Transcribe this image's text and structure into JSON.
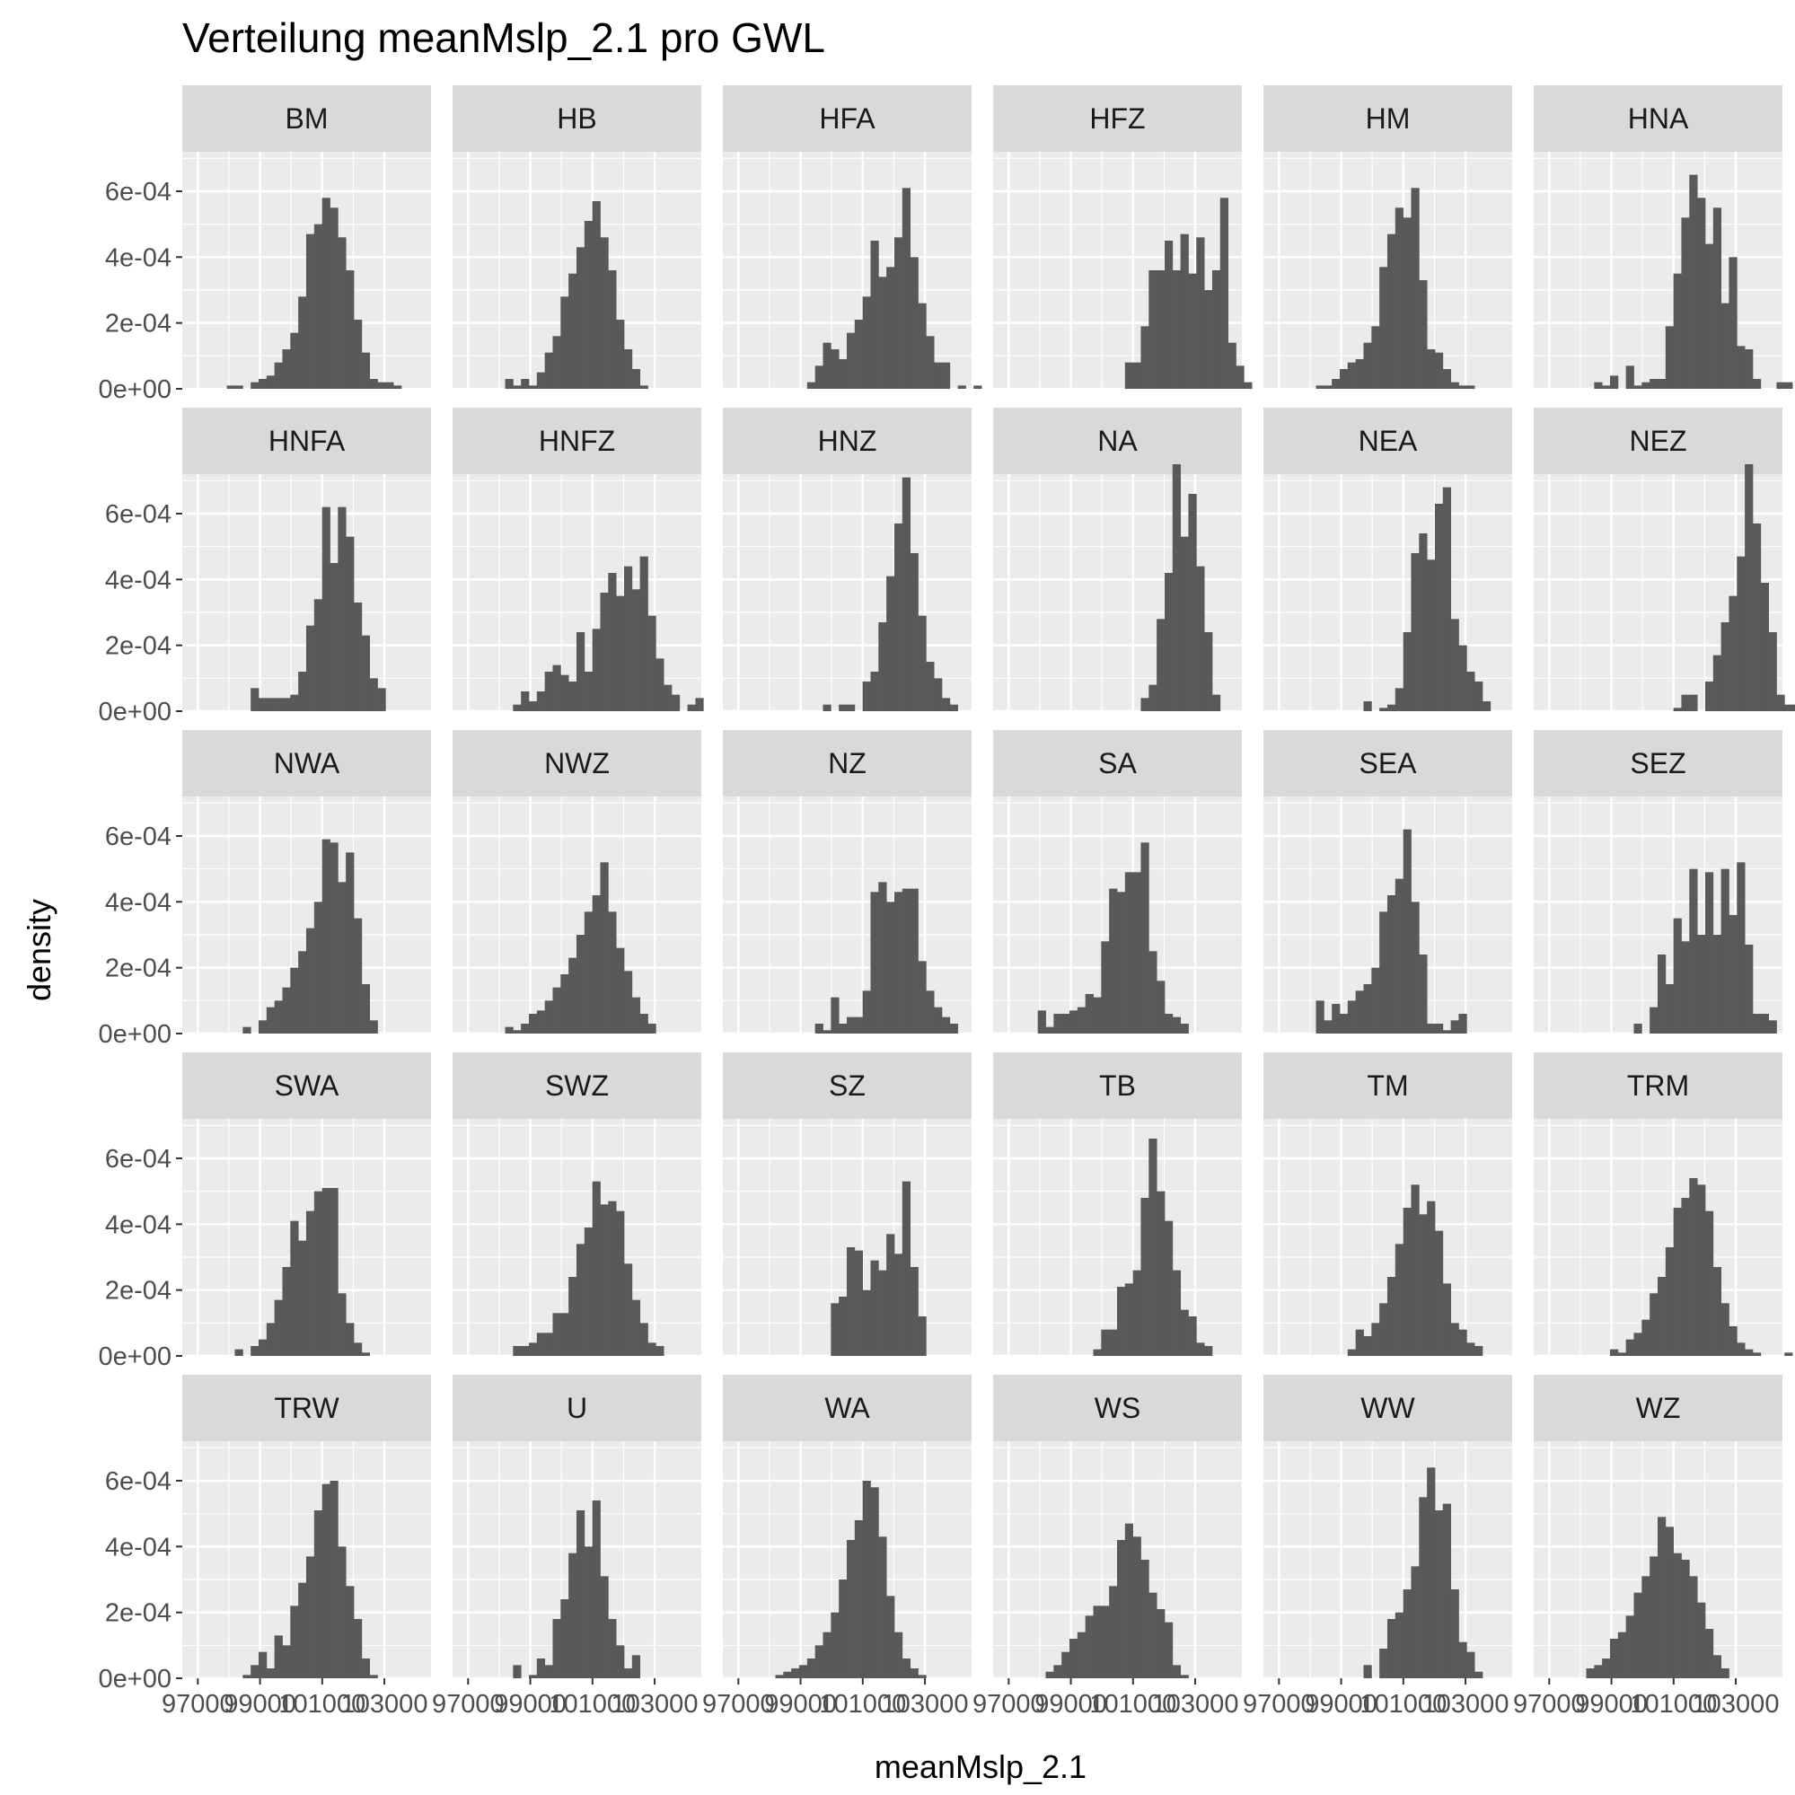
{
  "chart_data": {
    "type": "histogram-facet",
    "title": "Verteilung meanMslp_2.1 pro GWL",
    "xlabel": "meanMslp_2.1",
    "ylabel": "density",
    "xlim": [
      96500,
      104500
    ],
    "ylim": [
      0,
      0.00072
    ],
    "x_ticks": [
      97000,
      99000,
      101000,
      103000
    ],
    "x_tick_labels": [
      "97000",
      "99000",
      "101000",
      "103000"
    ],
    "y_ticks": [
      0,
      0.0002,
      0.0004,
      0.0006
    ],
    "y_tick_labels": [
      "0e+00",
      "2e-04",
      "4e-04",
      "6e-04"
    ],
    "bin_start": 96660,
    "bin_width": 255,
    "grid": true,
    "bar_color": "#595959",
    "panel_bg": "#ebebeb",
    "strip_bg": "#d9d9d9",
    "panels": [
      {
        "name": "BM",
        "values": [
          0,
          0,
          0,
          0,
          0,
          1e-05,
          1e-05,
          0,
          2e-05,
          3e-05,
          4e-05,
          8e-05,
          0.00012,
          0.00017,
          0.00028,
          0.00047,
          0.0005,
          0.00058,
          0.00055,
          0.00046,
          0.00036,
          0.00021,
          0.00011,
          3e-05,
          2e-05,
          2e-05,
          1e-05
        ]
      },
      {
        "name": "HB",
        "values": [
          0,
          0,
          0,
          0,
          0,
          0,
          3e-05,
          1e-05,
          3e-05,
          1e-05,
          5e-05,
          0.00011,
          0.00016,
          0.00028,
          0.00035,
          0.00043,
          0.00051,
          0.00057,
          0.00046,
          0.00036,
          0.00021,
          0.00012,
          6e-05,
          1e-05
        ]
      },
      {
        "name": "HFA",
        "values": [
          0,
          0,
          0,
          0,
          0,
          0,
          0,
          0,
          0,
          0,
          2e-05,
          7e-05,
          0.00014,
          0.00012,
          9e-05,
          0.00017,
          0.00021,
          0.00028,
          0.00045,
          0.00034,
          0.00037,
          0.00046,
          0.00061,
          0.0004,
          0.00026,
          0.00016,
          8e-05,
          8e-05,
          0,
          1e-05,
          0,
          1e-05
        ]
      },
      {
        "name": "HFZ",
        "values": [
          0,
          0,
          0,
          0,
          0,
          0,
          0,
          0,
          0,
          0,
          0,
          0,
          0,
          0,
          0,
          0,
          8e-05,
          8e-05,
          0.00019,
          0.00036,
          0.00036,
          0.00045,
          0.00036,
          0.00047,
          0.00035,
          0.00046,
          0.0003,
          0.00036,
          0.00058,
          0.00014,
          7e-05,
          2e-05
        ]
      },
      {
        "name": "HM",
        "values": [
          0,
          0,
          0,
          0,
          0,
          0,
          1e-05,
          1e-05,
          3e-05,
          6e-05,
          8e-05,
          9e-05,
          0.00014,
          0.00019,
          0.00037,
          0.00047,
          0.00055,
          0.00052,
          0.00061,
          0.00033,
          0.00012,
          0.00011,
          6e-05,
          2e-05,
          1e-05,
          1e-05
        ]
      },
      {
        "name": "HNA",
        "values": [
          0,
          0,
          0,
          0,
          0,
          0,
          0,
          2e-05,
          1e-05,
          4e-05,
          0,
          7e-05,
          1e-05,
          2e-05,
          3e-05,
          3e-05,
          0.00019,
          0.00035,
          0.00052,
          0.00065,
          0.00058,
          0.00044,
          0.00055,
          0.00026,
          0.0004,
          0.00013,
          0.00012,
          3e-05,
          0,
          0,
          2e-05,
          2e-05
        ]
      },
      {
        "name": "HNFA",
        "values": [
          0,
          0,
          0,
          0,
          0,
          0,
          0,
          0,
          7e-05,
          4e-05,
          4e-05,
          4e-05,
          4e-05,
          5e-05,
          0.00012,
          0.00026,
          0.00034,
          0.00062,
          0.00045,
          0.00062,
          0.00053,
          0.00033,
          0.00023,
          0.0001,
          7e-05
        ]
      },
      {
        "name": "HNFZ",
        "values": [
          0,
          0,
          0,
          0,
          0,
          0,
          0,
          2e-05,
          6e-05,
          3e-05,
          6e-05,
          0.00012,
          0.00014,
          0.00011,
          9e-05,
          0.00024,
          0.00012,
          0.00025,
          0.00036,
          0.00042,
          0.00035,
          0.00044,
          0.00037,
          0.00047,
          0.00029,
          0.00016,
          8e-05,
          5e-05,
          0,
          2e-05,
          4e-05
        ]
      },
      {
        "name": "HNZ",
        "values": [
          0,
          0,
          0,
          0,
          0,
          0,
          0,
          0,
          0,
          0,
          0,
          0,
          2e-05,
          0,
          2e-05,
          2e-05,
          0,
          9e-05,
          0.00012,
          0.00027,
          0.00041,
          0.00057,
          0.00071,
          0.00048,
          0.00029,
          0.00015,
          0.0001,
          4e-05,
          2e-05
        ]
      },
      {
        "name": "NA",
        "values": [
          0,
          0,
          0,
          0,
          0,
          0,
          0,
          0,
          0,
          0,
          0,
          0,
          0,
          0,
          0,
          0,
          0,
          0,
          4e-05,
          8e-05,
          0.00028,
          0.00042,
          0.00075,
          0.00053,
          0.00066,
          0.00044,
          0.00024,
          5e-05
        ]
      },
      {
        "name": "NEA",
        "values": [
          0,
          0,
          0,
          0,
          0,
          0,
          0,
          0,
          0,
          0,
          0,
          0,
          3e-05,
          0,
          1e-05,
          2e-05,
          7e-05,
          0.00024,
          0.00048,
          0.00054,
          0.00046,
          0.00063,
          0.00068,
          0.00028,
          0.0002,
          0.00012,
          9e-05,
          3e-05
        ]
      },
      {
        "name": "NEZ",
        "values": [
          0,
          0,
          0,
          0,
          0,
          0,
          0,
          0,
          0,
          0,
          0,
          0,
          0,
          0,
          0,
          0,
          0,
          1e-05,
          5e-05,
          5e-05,
          0,
          9e-05,
          0.00017,
          0.00027,
          0.00035,
          0.00047,
          0.00075,
          0.00057,
          0.00039,
          0.00024,
          5e-05,
          2e-05,
          2e-05
        ]
      },
      {
        "name": "NWA",
        "values": [
          0,
          0,
          0,
          0,
          0,
          0,
          0,
          2e-05,
          0,
          4e-05,
          8e-05,
          0.0001,
          0.00014,
          0.0002,
          0.00025,
          0.00032,
          0.0004,
          0.00059,
          0.00058,
          0.00046,
          0.00055,
          0.00035,
          0.00015,
          4e-05
        ]
      },
      {
        "name": "NWZ",
        "values": [
          0,
          0,
          0,
          0,
          0,
          0,
          2e-05,
          1e-05,
          3e-05,
          6e-05,
          7e-05,
          0.0001,
          0.00014,
          0.00018,
          0.00023,
          0.0003,
          0.00037,
          0.00042,
          0.00052,
          0.00037,
          0.00026,
          0.00019,
          0.00011,
          6e-05,
          3e-05
        ]
      },
      {
        "name": "NZ",
        "values": [
          0,
          0,
          0,
          0,
          0,
          0,
          0,
          0,
          0,
          0,
          0,
          3e-05,
          1e-05,
          0.00011,
          3e-05,
          5e-05,
          5e-05,
          0.00013,
          0.00043,
          0.00046,
          0.0004,
          0.00043,
          0.00044,
          0.00044,
          0.00022,
          0.00013,
          8e-05,
          5e-05,
          3e-05
        ]
      },
      {
        "name": "SA",
        "values": [
          0,
          0,
          0,
          0,
          0,
          7e-05,
          2e-05,
          6e-05,
          6e-05,
          7e-05,
          8e-05,
          0.00012,
          0.00011,
          0.00028,
          0.00044,
          0.00043,
          0.00049,
          0.00049,
          0.00058,
          0.00025,
          0.00016,
          6e-05,
          5e-05,
          3e-05
        ]
      },
      {
        "name": "SEA",
        "values": [
          0,
          0,
          0,
          0,
          0,
          0,
          0.0001,
          4e-05,
          9e-05,
          6e-05,
          0.0001,
          0.00013,
          0.00015,
          0.0002,
          0.00037,
          0.00042,
          0.00047,
          0.00062,
          0.0004,
          0.00024,
          3e-05,
          3e-05,
          1e-05,
          4e-05,
          6e-05
        ]
      },
      {
        "name": "SEZ",
        "values": [
          0,
          0,
          0,
          0,
          0,
          0,
          0,
          0,
          0,
          0,
          0,
          0,
          3e-05,
          0,
          8e-05,
          0.00024,
          0.00015,
          0.00035,
          0.00028,
          0.0005,
          0.0003,
          0.00049,
          0.0003,
          0.0005,
          0.00036,
          0.00052,
          0.00027,
          6e-05,
          6e-05,
          4e-05
        ]
      },
      {
        "name": "SWA",
        "values": [
          0,
          0,
          0,
          0,
          0,
          0,
          2e-05,
          0,
          3e-05,
          5e-05,
          0.0001,
          0.00017,
          0.00027,
          0.00041,
          0.00035,
          0.00044,
          0.0005,
          0.00051,
          0.00051,
          0.00019,
          0.0001,
          4e-05,
          1e-05
        ]
      },
      {
        "name": "SWZ",
        "values": [
          0,
          0,
          0,
          0,
          0,
          0,
          0,
          3e-05,
          3e-05,
          4e-05,
          7e-05,
          7e-05,
          0.00013,
          0.00013,
          0.00024,
          0.00034,
          0.00039,
          0.00053,
          0.00046,
          0.00047,
          0.00044,
          0.00028,
          0.00017,
          0.0001,
          4e-05,
          3e-05
        ]
      },
      {
        "name": "SZ",
        "values": [
          0,
          0,
          0,
          0,
          0,
          0,
          0,
          0,
          0,
          0,
          0,
          0,
          0,
          0.00016,
          0.00018,
          0.00033,
          0.00032,
          0.0002,
          0.00029,
          0.00026,
          0.00037,
          0.00031,
          0.00053,
          0.00027,
          0.00012
        ]
      },
      {
        "name": "TB",
        "values": [
          0,
          0,
          0,
          0,
          0,
          0,
          0,
          0,
          0,
          0,
          0,
          0,
          2e-05,
          8e-05,
          8e-05,
          0.00021,
          0.00022,
          0.00026,
          0.00048,
          0.00066,
          0.0005,
          0.00041,
          0.00026,
          0.00014,
          0.00012,
          4e-05,
          3e-05
        ]
      },
      {
        "name": "TM",
        "values": [
          0,
          0,
          0,
          0,
          0,
          0,
          0,
          0,
          0,
          0,
          2e-05,
          8e-05,
          6e-05,
          0.0001,
          0.00016,
          0.00024,
          0.00034,
          0.00045,
          0.00052,
          0.00043,
          0.00047,
          0.00038,
          0.00022,
          0.0001,
          8e-05,
          4e-05,
          3e-05
        ]
      },
      {
        "name": "TRM",
        "values": [
          0,
          0,
          0,
          0,
          0,
          0,
          0,
          0,
          0,
          2e-05,
          1e-05,
          5e-05,
          7e-05,
          0.00011,
          0.00019,
          0.00024,
          0.00033,
          0.00045,
          0.00048,
          0.00054,
          0.00052,
          0.00044,
          0.00027,
          0.00016,
          9e-05,
          4e-05,
          2e-05,
          1e-05,
          0,
          0,
          0,
          1e-05
        ]
      },
      {
        "name": "TRW",
        "values": [
          0,
          0,
          0,
          0,
          0,
          0,
          0,
          1e-05,
          4e-05,
          8e-05,
          3e-05,
          0.00013,
          0.0001,
          0.00022,
          0.00029,
          0.00037,
          0.00051,
          0.00059,
          0.0006,
          0.0004,
          0.00028,
          0.00018,
          6e-05,
          1e-05
        ]
      },
      {
        "name": "U",
        "values": [
          0,
          0,
          0,
          0,
          0,
          0,
          0,
          4e-05,
          0,
          1e-05,
          6e-05,
          4e-05,
          0.00018,
          0.00024,
          0.00038,
          0.00051,
          0.0004,
          0.00054,
          0.00031,
          0.00018,
          0.0001,
          3e-05,
          7e-05
        ]
      },
      {
        "name": "WA",
        "values": [
          0,
          0,
          0,
          0,
          0,
          0,
          1e-05,
          2e-05,
          3e-05,
          4e-05,
          6e-05,
          0.0001,
          0.00014,
          0.0002,
          0.0003,
          0.00042,
          0.00048,
          0.0006,
          0.00058,
          0.00043,
          0.00025,
          0.00014,
          6e-05,
          3e-05,
          1e-05
        ]
      },
      {
        "name": "WS",
        "values": [
          0,
          0,
          0,
          0,
          0,
          0,
          2e-05,
          4e-05,
          8e-05,
          0.00012,
          0.00014,
          0.00019,
          0.00022,
          0.00022,
          0.00028,
          0.00042,
          0.00047,
          0.00043,
          0.00036,
          0.00026,
          0.00021,
          0.00017,
          4e-05,
          1e-05
        ]
      },
      {
        "name": "WW",
        "values": [
          0,
          0,
          0,
          0,
          0,
          0,
          0,
          0,
          0,
          0,
          0,
          0,
          4e-05,
          0,
          9e-05,
          0.00018,
          0.0002,
          0.00027,
          0.00034,
          0.00055,
          0.00064,
          0.00051,
          0.00053,
          0.00027,
          0.00011,
          8e-05,
          2e-05
        ]
      },
      {
        "name": "WZ",
        "values": [
          0,
          0,
          0,
          0,
          0,
          0,
          3e-05,
          4e-05,
          6e-05,
          0.00012,
          0.00014,
          0.00019,
          0.00026,
          0.00031,
          0.00037,
          0.00049,
          0.00046,
          0.00038,
          0.00036,
          0.00031,
          0.00023,
          0.00015,
          7e-05,
          3e-05
        ]
      }
    ]
  }
}
